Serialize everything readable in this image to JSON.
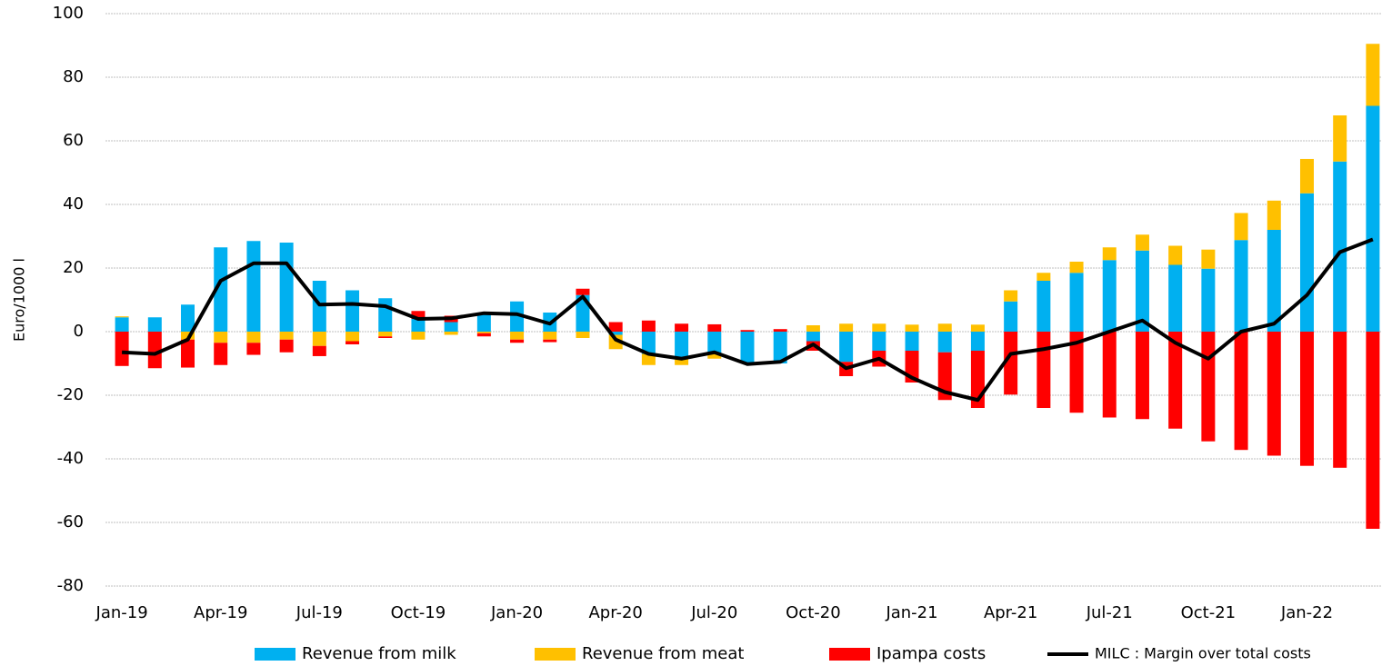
{
  "chart_data": {
    "type": "stacked-bar-line",
    "y_label": "Euro/1000 l",
    "categories": [
      "Jan-19",
      null,
      null,
      "Apr-19",
      null,
      null,
      "Jul-19",
      null,
      null,
      "Oct-19",
      null,
      null,
      "Jan-20",
      null,
      null,
      "Apr-20",
      null,
      null,
      "Jul-20",
      null,
      null,
      "Oct-20",
      null,
      null,
      "Jan-21",
      null,
      null,
      "Apr-21",
      null,
      null,
      "Jul-21",
      null,
      null,
      "Oct-21",
      null,
      null,
      "Jan-22",
      null,
      null
    ],
    "series": [
      {
        "name": "Revenue from milk",
        "color": "#00b0f0",
        "kind": "bar",
        "values": [
          4.5,
          4.5,
          8.5,
          26.5,
          28.5,
          28,
          16,
          13,
          10.5,
          4,
          3,
          5.5,
          9.5,
          6,
          11.5,
          -1,
          -7,
          -8.5,
          -7,
          -10,
          -10,
          -3,
          -9.5,
          -6,
          -6,
          -6.5,
          -6,
          9.5,
          16,
          18.5,
          22.5,
          25.5,
          21,
          19.8,
          28.8,
          32,
          43.5,
          53.5,
          71
        ]
      },
      {
        "name": "Revenue from meat",
        "color": "#ffc000",
        "kind": "bar",
        "values": [
          0.3,
          0,
          -2.5,
          -3.5,
          -3.5,
          -2.5,
          -4.5,
          -3,
          -1.5,
          -2.5,
          -1,
          -0.5,
          -2.5,
          -2.5,
          -2,
          -4.5,
          -3.5,
          -2,
          -1.5,
          0,
          0,
          2,
          2.5,
          2.5,
          2.2,
          2.5,
          2.2,
          3.5,
          2.5,
          3.5,
          4,
          5,
          6,
          6,
          8.5,
          9.2,
          10.8,
          14.5,
          19.5
        ]
      },
      {
        "name": "Ipampa costs",
        "color": "#ff0000",
        "kind": "bar",
        "values": [
          -10.8,
          -11.5,
          -8.8,
          -7,
          -3.8,
          -4,
          -3.2,
          -1,
          -0.5,
          2.5,
          2,
          -1,
          -1,
          -0.8,
          2,
          3,
          3.5,
          2.5,
          2.3,
          0.5,
          0.8,
          -3,
          -4.5,
          -5,
          -10,
          -15,
          -18,
          -19.8,
          -24,
          -25.5,
          -27,
          -27.5,
          -30.5,
          -34.5,
          -37.2,
          -39,
          -42.2,
          -42.8,
          -62
        ]
      },
      {
        "name": "MILC : Margin over total costs",
        "color": "#000000",
        "kind": "line",
        "values": [
          -6.5,
          -7,
          -2.5,
          16,
          21.5,
          21.5,
          8.5,
          8.7,
          8,
          4,
          4.2,
          5.8,
          5.5,
          2.5,
          11,
          -2.5,
          -7,
          -8.5,
          -6.5,
          -10.2,
          -9.5,
          -4,
          -11.5,
          -8.5,
          -14.5,
          -19,
          -21.5,
          -7,
          -5.5,
          -3.5,
          0,
          3.5,
          -3.5,
          -8.5,
          0,
          2.5,
          11.5,
          25,
          29
        ]
      }
    ],
    "ylim": [
      -80,
      100
    ],
    "yticks": [
      -80,
      -60,
      -40,
      -20,
      0,
      20,
      40,
      60,
      80,
      100
    ],
    "grid": true,
    "legend": "bottom"
  }
}
